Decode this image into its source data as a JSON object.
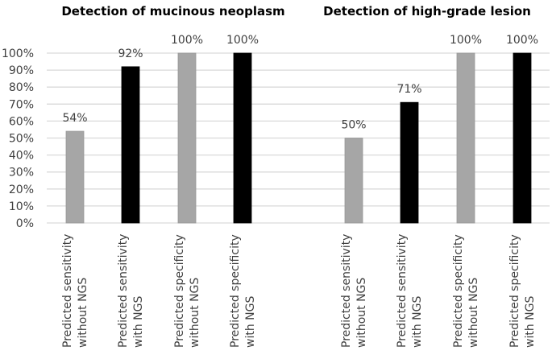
{
  "chart_data": [
    {
      "type": "bar",
      "title": "Detection of mucinous neoplasm",
      "categories": [
        "Predicted sensitivity without NGS",
        "Predicted sensitivity with NGS",
        "Predicted specificity without NGS",
        "Predicted specificity with NGS"
      ],
      "category_lines": [
        [
          "Predicted sensitivity",
          "without NGS"
        ],
        [
          "Predicted sensitivity",
          "with NGS"
        ],
        [
          "Predicted specificity",
          "without NGS"
        ],
        [
          "Predicted specificity",
          "with NGS"
        ]
      ],
      "values": [
        54,
        92,
        100,
        100
      ],
      "data_labels": [
        "54%",
        "92%",
        "100%",
        "100%"
      ],
      "bar_colors": [
        "#a6a6a6",
        "#000000",
        "#a6a6a6",
        "#000000"
      ],
      "ylim": [
        0,
        100
      ],
      "yticks": [
        "0%",
        "10%",
        "20%",
        "30%",
        "40%",
        "50%",
        "60%",
        "70%",
        "80%",
        "90%",
        "100%"
      ],
      "grid": true
    },
    {
      "type": "bar",
      "title": "Detection of high-grade lesion",
      "categories": [
        "Predicted  sensitivity without NGS",
        "Predicted sensitivity with NGS",
        "Predicted specificity without NGS",
        "Predicted specificity with NGS"
      ],
      "category_lines": [
        [
          "Predicted  sensitivity",
          "without NGS"
        ],
        [
          "Predicted sensitivity",
          "with NGS"
        ],
        [
          "Predicted specificity",
          "without NGS"
        ],
        [
          "Predicted specificity",
          "with NGS"
        ]
      ],
      "values": [
        50,
        71,
        100,
        100
      ],
      "data_labels": [
        "50%",
        "71%",
        "100%",
        "100%"
      ],
      "bar_colors": [
        "#a6a6a6",
        "#000000",
        "#a6a6a6",
        "#000000"
      ],
      "ylim": [
        0,
        100
      ],
      "grid": true
    }
  ]
}
